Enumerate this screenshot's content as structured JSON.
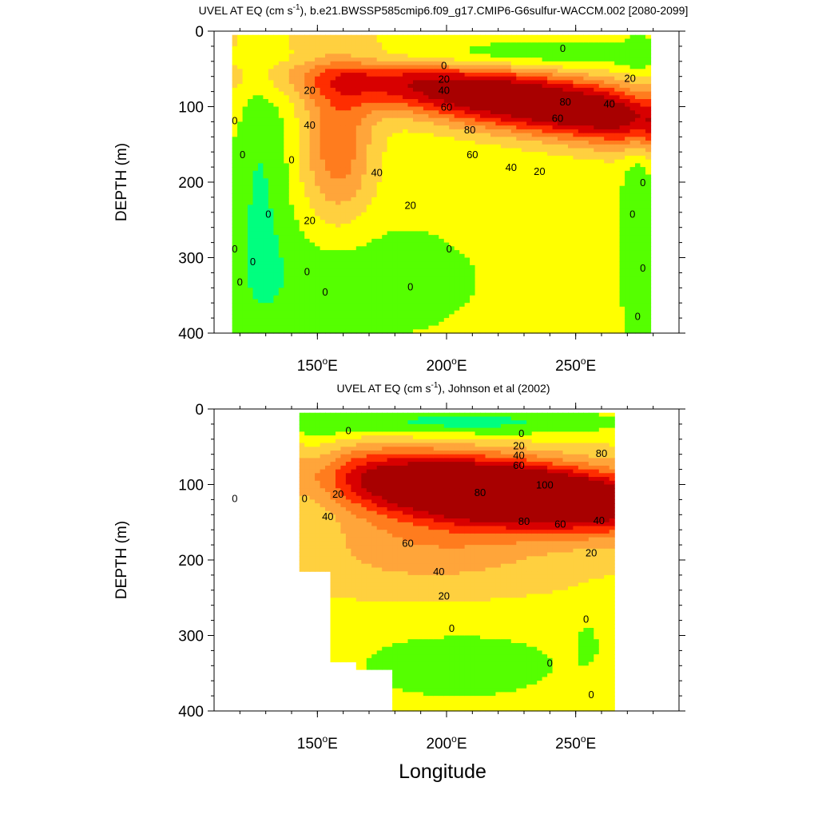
{
  "chart_data": [
    {
      "type": "contour",
      "title_main": "UVEL AT EQ (cm s",
      "title_sup": "-1",
      "title_rest": "), b.e21.BWSSP585cmip6.f09_g17.CMIP6-G6sulfur-WACCM.002 [2080-2099]",
      "ylabel": "DEPTH (m)",
      "xlabel": "",
      "xlim": [
        110,
        290
      ],
      "ylim": [
        0,
        400
      ],
      "y_reversed": true,
      "yticks": [
        "0",
        "100",
        "200",
        "300",
        "400"
      ],
      "xticks": [
        {
          "value": 150,
          "label": "150",
          "sup": "o",
          "suffix": "E"
        },
        {
          "value": 200,
          "label": "200",
          "sup": "o",
          "suffix": "E"
        },
        {
          "value": 250,
          "label": "250",
          "sup": "o",
          "suffix": "E"
        }
      ],
      "data_extent": {
        "lon": [
          117,
          279
        ],
        "depth": [
          5,
          400
        ]
      },
      "core": {
        "lon": 235,
        "depth": 95,
        "max_value": 90
      },
      "contour_labels": [
        {
          "text": "0",
          "lon": 199,
          "depth": 45
        },
        {
          "text": "20",
          "lon": 199,
          "depth": 63
        },
        {
          "text": "40",
          "lon": 199,
          "depth": 78
        },
        {
          "text": "60",
          "lon": 200,
          "depth": 100
        },
        {
          "text": "0",
          "lon": 245,
          "depth": 22
        },
        {
          "text": "80",
          "lon": 246,
          "depth": 93
        },
        {
          "text": "60",
          "lon": 243,
          "depth": 115
        },
        {
          "text": "40",
          "lon": 263,
          "depth": 96
        },
        {
          "text": "20",
          "lon": 271,
          "depth": 62
        },
        {
          "text": "80",
          "lon": 209,
          "depth": 130
        },
        {
          "text": "60",
          "lon": 210,
          "depth": 163
        },
        {
          "text": "40",
          "lon": 225,
          "depth": 180
        },
        {
          "text": "20",
          "lon": 236,
          "depth": 185
        },
        {
          "text": "40",
          "lon": 173,
          "depth": 187
        },
        {
          "text": "20",
          "lon": 186,
          "depth": 230
        },
        {
          "text": "20",
          "lon": 147,
          "depth": 78
        },
        {
          "text": "40",
          "lon": 147,
          "depth": 124
        },
        {
          "text": "20",
          "lon": 147,
          "depth": 250
        },
        {
          "text": "0",
          "lon": 118,
          "depth": 118
        },
        {
          "text": "0",
          "lon": 121,
          "depth": 163
        },
        {
          "text": "0",
          "lon": 140,
          "depth": 170
        },
        {
          "text": "0",
          "lon": 131,
          "depth": 242
        },
        {
          "text": "0",
          "lon": 118,
          "depth": 288
        },
        {
          "text": "0",
          "lon": 125,
          "depth": 305
        },
        {
          "text": "0",
          "lon": 120,
          "depth": 332
        },
        {
          "text": "0",
          "lon": 146,
          "depth": 318
        },
        {
          "text": "0",
          "lon": 153,
          "depth": 345
        },
        {
          "text": "0",
          "lon": 186,
          "depth": 338
        },
        {
          "text": "0",
          "lon": 201,
          "depth": 288
        },
        {
          "text": "0",
          "lon": 276,
          "depth": 200
        },
        {
          "text": "0",
          "lon": 272,
          "depth": 242
        },
        {
          "text": "0",
          "lon": 276,
          "depth": 313
        },
        {
          "text": "0",
          "lon": 274,
          "depth": 377
        }
      ]
    },
    {
      "type": "contour",
      "title_main": "UVEL AT EQ (cm s",
      "title_sup": "-1",
      "title_rest": "), Johnson et al (2002)",
      "ylabel": "DEPTH (m)",
      "xlabel": "Longitude",
      "xlim": [
        110,
        290
      ],
      "ylim": [
        0,
        400
      ],
      "y_reversed": true,
      "yticks": [
        "0",
        "100",
        "200",
        "300",
        "400"
      ],
      "xticks": [
        {
          "value": 150,
          "label": "150",
          "sup": "o",
          "suffix": "E"
        },
        {
          "value": 200,
          "label": "200",
          "sup": "o",
          "suffix": "E"
        },
        {
          "value": 250,
          "label": "250",
          "sup": "o",
          "suffix": "E"
        }
      ],
      "data_extent": {
        "lon": [
          143,
          265
        ],
        "depth": [
          5,
          400
        ]
      },
      "core": {
        "lon": 222,
        "depth": 110,
        "max_value": 105
      },
      "contour_labels": [
        {
          "text": "0",
          "lon": 162,
          "depth": 28
        },
        {
          "text": "0",
          "lon": 118,
          "depth": 118
        },
        {
          "text": "0",
          "lon": 145,
          "depth": 118
        },
        {
          "text": "20",
          "lon": 158,
          "depth": 112
        },
        {
          "text": "40",
          "lon": 154,
          "depth": 142
        },
        {
          "text": "0",
          "lon": 229,
          "depth": 32
        },
        {
          "text": "20",
          "lon": 228,
          "depth": 48
        },
        {
          "text": "40",
          "lon": 228,
          "depth": 61
        },
        {
          "text": "60",
          "lon": 228,
          "depth": 74
        },
        {
          "text": "80",
          "lon": 260,
          "depth": 58
        },
        {
          "text": "80",
          "lon": 213,
          "depth": 110
        },
        {
          "text": "100",
          "lon": 238,
          "depth": 100
        },
        {
          "text": "80",
          "lon": 230,
          "depth": 148
        },
        {
          "text": "60",
          "lon": 244,
          "depth": 152
        },
        {
          "text": "40",
          "lon": 259,
          "depth": 147
        },
        {
          "text": "60",
          "lon": 185,
          "depth": 177
        },
        {
          "text": "40",
          "lon": 197,
          "depth": 215
        },
        {
          "text": "20",
          "lon": 199,
          "depth": 247
        },
        {
          "text": "20",
          "lon": 256,
          "depth": 190
        },
        {
          "text": "0",
          "lon": 202,
          "depth": 290
        },
        {
          "text": "0",
          "lon": 254,
          "depth": 278
        },
        {
          "text": "0",
          "lon": 240,
          "depth": 336
        },
        {
          "text": "0",
          "lon": 256,
          "depth": 378
        }
      ]
    }
  ]
}
